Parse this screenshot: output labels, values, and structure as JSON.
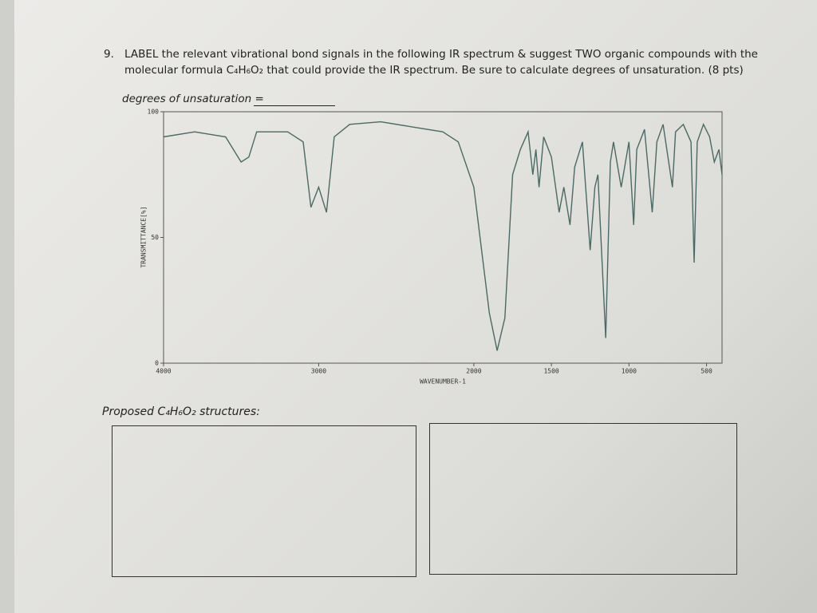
{
  "question": {
    "number": "9.",
    "lines": [
      "LABEL the relevant vibrational bond signals in the following IR spectrum & suggest TWO organic compounds with the",
      "molecular formula C₄H₆O₂ that could provide the IR spectrum. Be sure to calculate degrees of unsaturation. (8 pts)"
    ]
  },
  "prompt": "degrees of unsaturation =",
  "spectrum": {
    "type": "line",
    "color": "#4a6a66",
    "x_label": "WAVENUMBER-1",
    "y_label": "TRANSMITTANCE[%]",
    "xlim": [
      4000,
      400
    ],
    "ylim": [
      0,
      100
    ],
    "xticks": [
      4000,
      3000,
      2000,
      1500,
      1000,
      500
    ],
    "yticks": [
      0,
      50,
      100
    ],
    "x": [
      4000,
      3800,
      3600,
      3500,
      3450,
      3400,
      3300,
      3200,
      3100,
      3050,
      3000,
      2950,
      2900,
      2800,
      2600,
      2400,
      2200,
      2100,
      2000,
      1900,
      1850,
      1800,
      1750,
      1700,
      1650,
      1620,
      1600,
      1580,
      1550,
      1500,
      1450,
      1420,
      1380,
      1350,
      1300,
      1250,
      1220,
      1200,
      1150,
      1120,
      1100,
      1050,
      1000,
      970,
      950,
      900,
      850,
      820,
      780,
      720,
      700,
      650,
      600,
      580,
      560,
      520,
      480,
      450,
      420,
      400
    ],
    "values": [
      90,
      92,
      90,
      80,
      82,
      92,
      92,
      92,
      88,
      62,
      70,
      60,
      90,
      95,
      96,
      94,
      92,
      88,
      70,
      20,
      5,
      18,
      75,
      85,
      92,
      75,
      85,
      70,
      90,
      82,
      60,
      70,
      55,
      78,
      88,
      45,
      70,
      75,
      10,
      80,
      88,
      70,
      88,
      55,
      85,
      93,
      60,
      88,
      95,
      70,
      92,
      95,
      88,
      40,
      88,
      95,
      90,
      80,
      85,
      75
    ]
  },
  "proposal": {
    "title": "Proposed C₄H₆O₂ structures:"
  }
}
